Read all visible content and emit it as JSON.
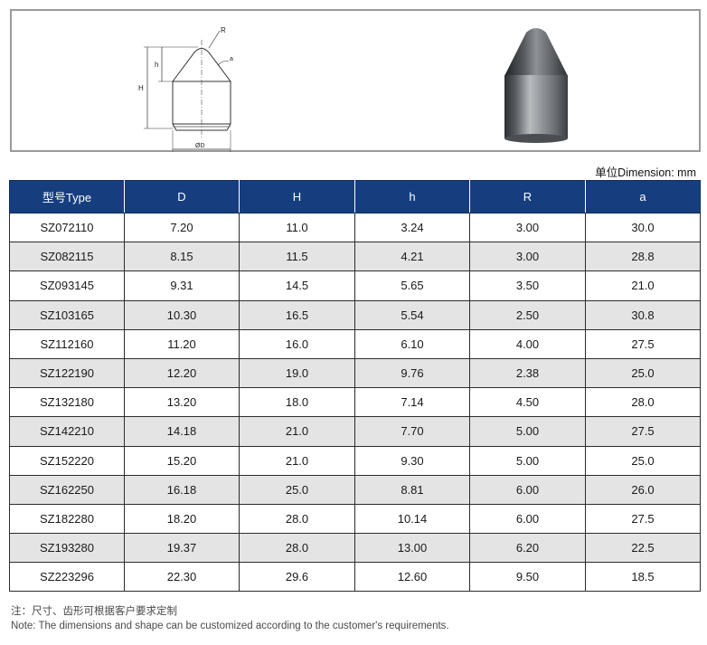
{
  "drawing_labels": {
    "radius": "R",
    "angle": "a",
    "height_h": "h",
    "height_H": "H",
    "diameter": "ØD"
  },
  "unit_note": "单位Dimension: mm",
  "table": {
    "headers": [
      "型号Type",
      "D",
      "H",
      "h",
      "R",
      "a"
    ],
    "rows": [
      [
        "SZ072110",
        "7.20",
        "11.0",
        "3.24",
        "3.00",
        "30.0"
      ],
      [
        "SZ082115",
        "8.15",
        "11.5",
        "4.21",
        "3.00",
        "28.8"
      ],
      [
        "SZ093145",
        "9.31",
        "14.5",
        "5.65",
        "3.50",
        "21.0"
      ],
      [
        "SZ103165",
        "10.30",
        "16.5",
        "5.54",
        "2.50",
        "30.8"
      ],
      [
        "SZ112160",
        "11.20",
        "16.0",
        "6.10",
        "4.00",
        "27.5"
      ],
      [
        "SZ122190",
        "12.20",
        "19.0",
        "9.76",
        "2.38",
        "25.0"
      ],
      [
        "SZ132180",
        "13.20",
        "18.0",
        "7.14",
        "4.50",
        "28.0"
      ],
      [
        "SZ142210",
        "14.18",
        "21.0",
        "7.70",
        "5.00",
        "27.5"
      ],
      [
        "SZ152220",
        "15.20",
        "21.0",
        "9.30",
        "5.00",
        "25.0"
      ],
      [
        "SZ162250",
        "16.18",
        "25.0",
        "8.81",
        "6.00",
        "26.0"
      ],
      [
        "SZ182280",
        "18.20",
        "28.0",
        "10.14",
        "6.00",
        "27.5"
      ],
      [
        "SZ193280",
        "19.37",
        "28.0",
        "13.00",
        "6.20",
        "22.5"
      ],
      [
        "SZ223296",
        "22.30",
        "29.6",
        "12.60",
        "9.50",
        "18.5"
      ]
    ]
  },
  "notes": {
    "cn": "注：尺寸、齿形可根据客户要求定制",
    "en": "Note: The dimensions and shape can be customized according to the customer's requirements."
  }
}
